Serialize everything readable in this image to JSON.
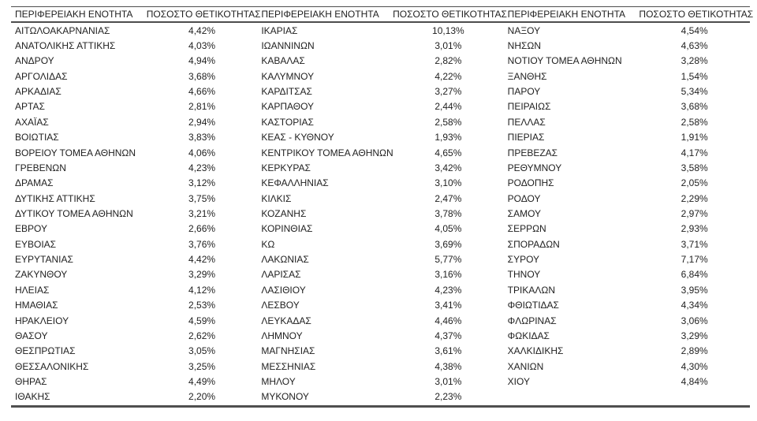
{
  "colors": {
    "text": "#1f1f1f",
    "border": "#4d4d4d",
    "background": "#ffffff"
  },
  "table": {
    "headers": {
      "region": "ΠΕΡΙΦΕΡΕΙΑΚΗ ΕΝΟΤΗΤΑ",
      "value": "ΠΟΣΟΣΤΟ ΘΕΤΙΚΟΤΗΤΑΣ"
    },
    "groups": [
      {
        "rows": [
          [
            "ΑΙΤΩΛΟΑΚΑΡΝΑΝΙΑΣ",
            "4,42%"
          ],
          [
            "ΑΝΑΤΟΛΙΚΗΣ ΑΤΤΙΚΗΣ",
            "4,03%"
          ],
          [
            "ΑΝΔΡΟΥ",
            "4,94%"
          ],
          [
            "ΑΡΓΟΛΙΔΑΣ",
            "3,68%"
          ],
          [
            "ΑΡΚΑΔΙΑΣ",
            "4,66%"
          ],
          [
            "ΑΡΤΑΣ",
            "2,81%"
          ],
          [
            "ΑΧΑΪΑΣ",
            "2,94%"
          ],
          [
            "ΒΟΙΩΤΙΑΣ",
            "3,83%"
          ],
          [
            "ΒΟΡΕΙΟΥ ΤΟΜΕΑ ΑΘΗΝΩΝ",
            "4,06%"
          ],
          [
            "ΓΡΕΒΕΝΩΝ",
            "4,23%"
          ],
          [
            "ΔΡΑΜΑΣ",
            "3,12%"
          ],
          [
            "ΔΥΤΙΚΗΣ ΑΤΤΙΚΗΣ",
            "3,75%"
          ],
          [
            "ΔΥΤΙΚΟΥ ΤΟΜΕΑ ΑΘΗΝΩΝ",
            "3,21%"
          ],
          [
            "ΕΒΡΟΥ",
            "2,66%"
          ],
          [
            "ΕΥΒΟΙΑΣ",
            "3,76%"
          ],
          [
            "ΕΥΡΥΤΑΝΙΑΣ",
            "4,42%"
          ],
          [
            "ΖΑΚΥΝΘΟΥ",
            "3,29%"
          ],
          [
            "ΗΛΕΙΑΣ",
            "4,12%"
          ],
          [
            "ΗΜΑΘΙΑΣ",
            "2,53%"
          ],
          [
            "ΗΡΑΚΛΕΙΟΥ",
            "4,59%"
          ],
          [
            "ΘΑΣΟΥ",
            "2,62%"
          ],
          [
            "ΘΕΣΠΡΩΤΙΑΣ",
            "3,05%"
          ],
          [
            "ΘΕΣΣΑΛΟΝΙΚΗΣ",
            "3,25%"
          ],
          [
            "ΘΗΡΑΣ",
            "4,49%"
          ],
          [
            "ΙΘΑΚΗΣ",
            "2,20%"
          ]
        ]
      },
      {
        "rows": [
          [
            "ΙΚΑΡΙΑΣ",
            "10,13%"
          ],
          [
            "ΙΩΑΝΝΙΝΩΝ",
            "3,01%"
          ],
          [
            "ΚΑΒΑΛΑΣ",
            "2,82%"
          ],
          [
            "ΚΑΛΥΜΝΟΥ",
            "4,22%"
          ],
          [
            "ΚΑΡΔΙΤΣΑΣ",
            "3,27%"
          ],
          [
            "ΚΑΡΠΑΘΟΥ",
            "2,44%"
          ],
          [
            "ΚΑΣΤΟΡΙΑΣ",
            "2,58%"
          ],
          [
            "ΚΕΑΣ - ΚΥΘΝΟΥ",
            "1,93%"
          ],
          [
            "ΚΕΝΤΡΙΚΟΥ ΤΟΜΕΑ ΑΘΗΝΩΝ",
            "4,65%"
          ],
          [
            "ΚΕΡΚΥΡΑΣ",
            "3,42%"
          ],
          [
            "ΚΕΦΑΛΛΗΝΙΑΣ",
            "3,10%"
          ],
          [
            "ΚΙΛΚΙΣ",
            "2,47%"
          ],
          [
            "ΚΟΖΑΝΗΣ",
            "3,78%"
          ],
          [
            "ΚΟΡΙΝΘΙΑΣ",
            "4,05%"
          ],
          [
            "ΚΩ",
            "3,69%"
          ],
          [
            "ΛΑΚΩΝΙΑΣ",
            "5,77%"
          ],
          [
            "ΛΑΡΙΣΑΣ",
            "3,16%"
          ],
          [
            "ΛΑΣΙΘΙΟΥ",
            "4,23%"
          ],
          [
            "ΛΕΣΒΟΥ",
            "3,41%"
          ],
          [
            "ΛΕΥΚΑΔΑΣ",
            "4,46%"
          ],
          [
            "ΛΗΜΝΟΥ",
            "4,37%"
          ],
          [
            "ΜΑΓΝΗΣΙΑΣ",
            "3,61%"
          ],
          [
            "ΜΕΣΣΗΝΙΑΣ",
            "4,38%"
          ],
          [
            "ΜΗΛΟΥ",
            "3,01%"
          ],
          [
            "ΜΥΚΟΝΟΥ",
            "2,23%"
          ]
        ]
      },
      {
        "rows": [
          [
            "ΝΑΞΟΥ",
            "4,54%"
          ],
          [
            "ΝΗΣΩΝ",
            "4,63%"
          ],
          [
            "ΝΟΤΙΟΥ ΤΟΜΕΑ ΑΘΗΝΩΝ",
            "3,28%"
          ],
          [
            "ΞΑΝΘΗΣ",
            "1,54%"
          ],
          [
            "ΠΑΡΟΥ",
            "5,34%"
          ],
          [
            "ΠΕΙΡΑΙΩΣ",
            "3,68%"
          ],
          [
            "ΠΕΛΛΑΣ",
            "2,58%"
          ],
          [
            "ΠΙΕΡΙΑΣ",
            "1,91%"
          ],
          [
            "ΠΡΕΒΕΖΑΣ",
            "4,17%"
          ],
          [
            "ΡΕΘΥΜΝΟΥ",
            "3,58%"
          ],
          [
            "ΡΟΔΟΠΗΣ",
            "2,05%"
          ],
          [
            "ΡΟΔΟΥ",
            "2,29%"
          ],
          [
            "ΣΑΜΟΥ",
            "2,97%"
          ],
          [
            "ΣΕΡΡΩΝ",
            "2,93%"
          ],
          [
            "ΣΠΟΡΑΔΩΝ",
            "3,71%"
          ],
          [
            "ΣΥΡΟΥ",
            "7,17%"
          ],
          [
            "ΤΗΝΟΥ",
            "6,84%"
          ],
          [
            "ΤΡΙΚΑΛΩΝ",
            "3,95%"
          ],
          [
            "ΦΘΙΩΤΙΔΑΣ",
            "4,34%"
          ],
          [
            "ΦΛΩΡΙΝΑΣ",
            "3,06%"
          ],
          [
            "ΦΩΚΙΔΑΣ",
            "3,29%"
          ],
          [
            "ΧΑΛΚΙΔΙΚΗΣ",
            "2,89%"
          ],
          [
            "ΧΑΝΙΩΝ",
            "4,30%"
          ],
          [
            "ΧΙΟΥ",
            "4,84%"
          ]
        ]
      }
    ]
  }
}
